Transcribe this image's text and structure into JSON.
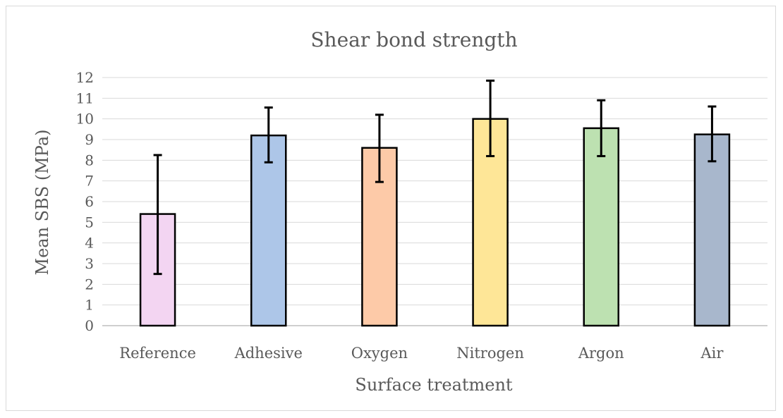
{
  "chart_data": {
    "type": "bar",
    "title": "Shear bond strength",
    "xlabel": "Surface treatment",
    "ylabel": "Mean SBS (MPa)",
    "ylim": [
      0,
      12
    ],
    "yticks": [
      0,
      1,
      2,
      3,
      4,
      5,
      6,
      7,
      8,
      9,
      10,
      11,
      12
    ],
    "grid": true,
    "legend": "none",
    "categories": [
      "Reference",
      "Adhesive",
      "Oxygen",
      "Nitrogen",
      "Argon",
      "Air"
    ],
    "values": [
      5.4,
      9.2,
      8.6,
      10.0,
      9.55,
      9.25
    ],
    "error_low": [
      2.5,
      7.9,
      6.95,
      8.2,
      8.2,
      7.95
    ],
    "error_high": [
      8.25,
      10.55,
      10.2,
      11.85,
      10.9,
      10.6
    ],
    "colors": [
      "#f3d5f2",
      "#adc6e8",
      "#fdcaa8",
      "#fee697",
      "#bde1b1",
      "#a8b7cc"
    ]
  }
}
